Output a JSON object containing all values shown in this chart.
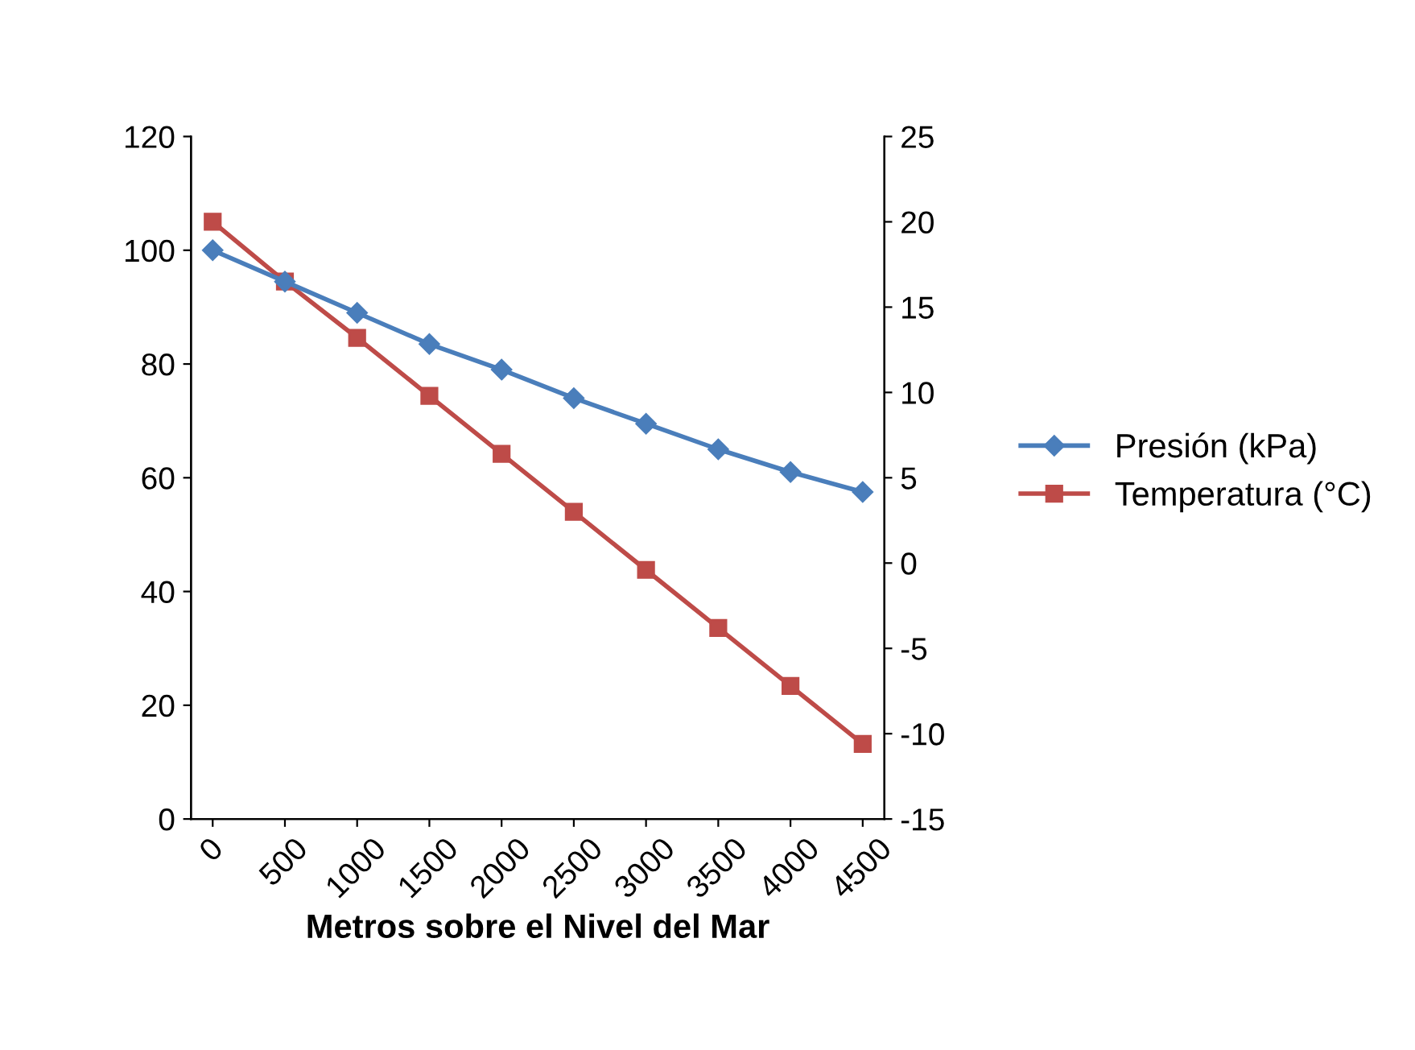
{
  "chart_data": {
    "type": "line",
    "xlabel": "Metros sobre el Nivel del Mar",
    "categories": [
      "0",
      "500",
      "1000",
      "1500",
      "2000",
      "2500",
      "3000",
      "3500",
      "4000",
      "4500"
    ],
    "series": [
      {
        "name": "Presión (kPa)",
        "color": "#4a7ebb",
        "marker": "diamond",
        "values": [
          100,
          94.5,
          89,
          83.5,
          79,
          74,
          69.5,
          65,
          61,
          57.5
        ]
      },
      {
        "name": "Temperatura (°C)",
        "color": "#be4b48",
        "marker": "square",
        "axis": "y2",
        "values": [
          20,
          16.5,
          13.2,
          9.8,
          6.4,
          3,
          -0.4,
          -3.8,
          -7.2,
          -10.6
        ]
      }
    ],
    "ylim": [
      0,
      120
    ],
    "yticks": [
      0,
      20,
      40,
      60,
      80,
      100,
      120
    ],
    "y2lim": [
      -15,
      25
    ],
    "y2ticks": [
      -15,
      -10,
      -5,
      0,
      5,
      10,
      15,
      20,
      25
    ],
    "grid": false,
    "legend": "right",
    "line_style": "solid"
  }
}
